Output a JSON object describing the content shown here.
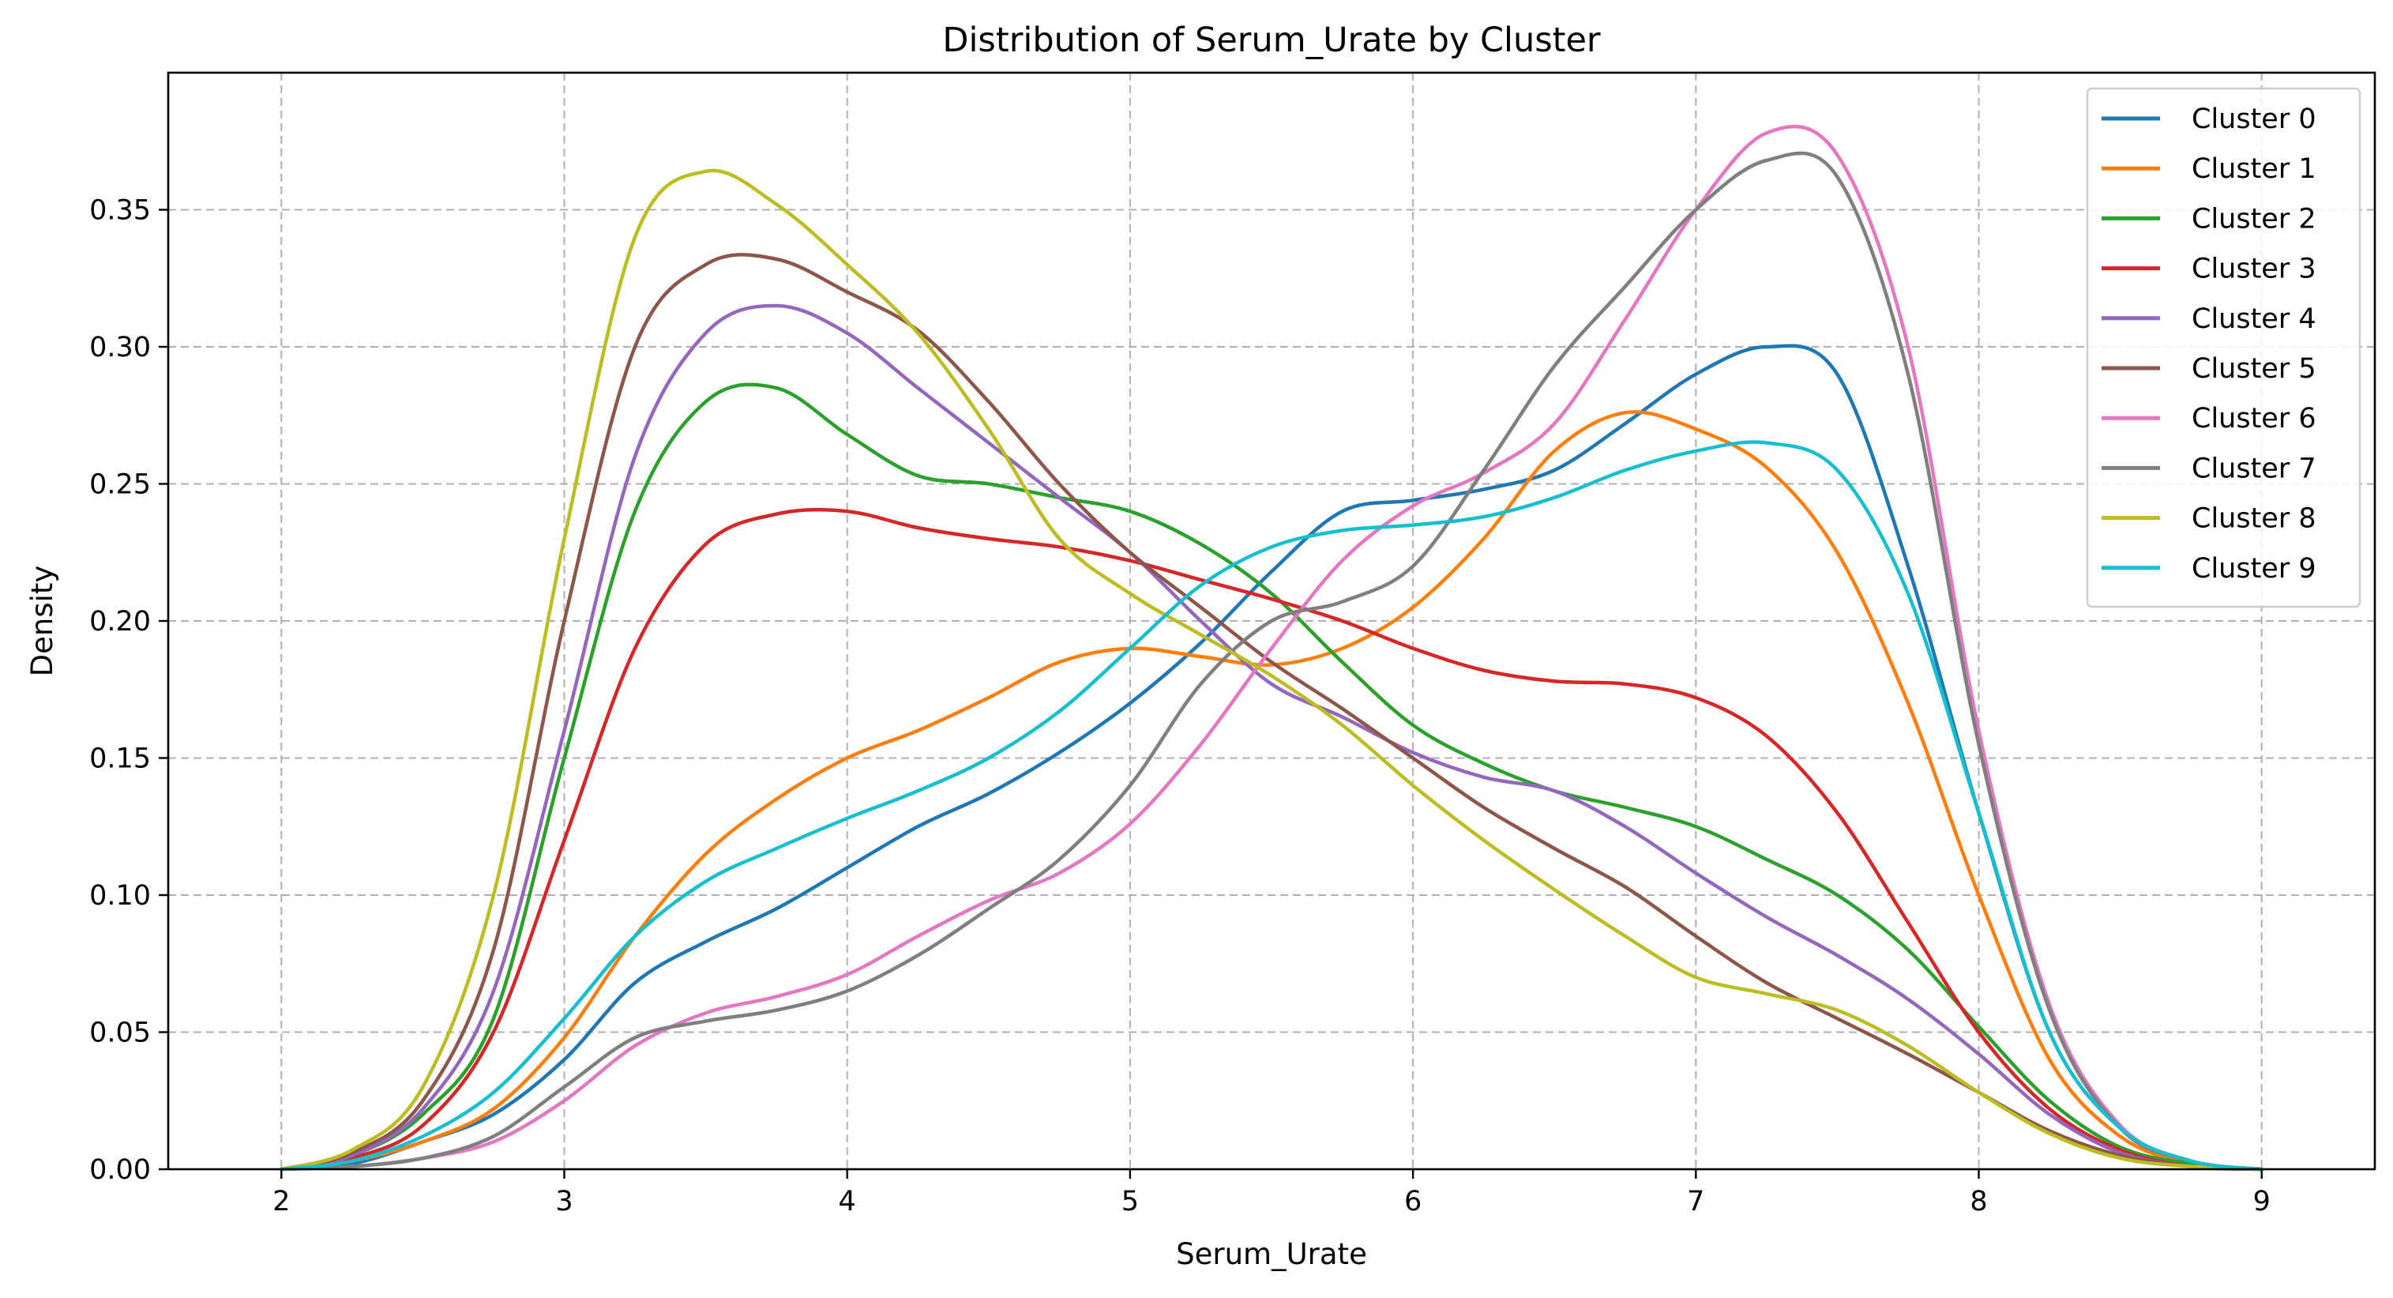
{
  "chart_data": {
    "type": "line",
    "title": "Distribution of Serum_Urate by Cluster",
    "xlabel": "Serum_Urate",
    "ylabel": "Density",
    "xlim": [
      1.6,
      9.4
    ],
    "ylim": [
      0.0,
      0.4
    ],
    "xticks": [
      2,
      3,
      4,
      5,
      6,
      7,
      8,
      9
    ],
    "yticks": [
      0.0,
      0.05,
      0.1,
      0.15,
      0.2,
      0.25,
      0.3,
      0.35
    ],
    "ytick_labels": [
      "0.00",
      "0.05",
      "0.10",
      "0.15",
      "0.20",
      "0.25",
      "0.30",
      "0.35"
    ],
    "grid": true,
    "legend_position": "top-right",
    "series": [
      {
        "name": "Cluster 0",
        "color": "#1f77b4",
        "x": [
          2.0,
          2.25,
          2.5,
          2.75,
          3.0,
          3.25,
          3.5,
          3.75,
          4.0,
          4.25,
          4.5,
          4.75,
          5.0,
          5.25,
          5.5,
          5.75,
          6.0,
          6.25,
          6.5,
          6.75,
          7.0,
          7.25,
          7.5,
          7.75,
          8.0,
          8.25,
          8.5,
          8.75,
          9.0
        ],
        "y": [
          0.0,
          0.002,
          0.01,
          0.02,
          0.04,
          0.068,
          0.083,
          0.095,
          0.11,
          0.125,
          0.137,
          0.152,
          0.17,
          0.192,
          0.218,
          0.24,
          0.244,
          0.248,
          0.255,
          0.272,
          0.29,
          0.3,
          0.29,
          0.22,
          0.13,
          0.05,
          0.015,
          0.003,
          0.0
        ]
      },
      {
        "name": "Cluster 1",
        "color": "#ff7f0e",
        "x": [
          2.0,
          2.25,
          2.5,
          2.75,
          3.0,
          3.25,
          3.5,
          3.75,
          4.0,
          4.25,
          4.5,
          4.75,
          5.0,
          5.25,
          5.5,
          5.75,
          6.0,
          6.25,
          6.5,
          6.75,
          7.0,
          7.25,
          7.5,
          7.75,
          8.0,
          8.25,
          8.5,
          8.75,
          9.0
        ],
        "y": [
          0.0,
          0.003,
          0.01,
          0.022,
          0.048,
          0.085,
          0.115,
          0.135,
          0.15,
          0.16,
          0.172,
          0.185,
          0.19,
          0.187,
          0.184,
          0.19,
          0.205,
          0.23,
          0.262,
          0.276,
          0.27,
          0.256,
          0.225,
          0.17,
          0.1,
          0.04,
          0.012,
          0.002,
          0.0
        ]
      },
      {
        "name": "Cluster 2",
        "color": "#2ca02c",
        "x": [
          2.0,
          2.25,
          2.5,
          2.75,
          3.0,
          3.25,
          3.5,
          3.75,
          4.0,
          4.25,
          4.5,
          4.75,
          5.0,
          5.25,
          5.5,
          5.75,
          6.0,
          6.25,
          6.5,
          6.75,
          7.0,
          7.25,
          7.5,
          7.75,
          8.0,
          8.25,
          8.5,
          8.75,
          9.0
        ],
        "y": [
          0.0,
          0.005,
          0.02,
          0.055,
          0.15,
          0.24,
          0.28,
          0.285,
          0.268,
          0.253,
          0.25,
          0.245,
          0.24,
          0.228,
          0.21,
          0.185,
          0.162,
          0.148,
          0.138,
          0.132,
          0.125,
          0.113,
          0.1,
          0.08,
          0.052,
          0.025,
          0.008,
          0.002,
          0.0
        ]
      },
      {
        "name": "Cluster 3",
        "color": "#d62728",
        "x": [
          2.0,
          2.25,
          2.5,
          2.75,
          3.0,
          3.25,
          3.5,
          3.75,
          4.0,
          4.25,
          4.5,
          4.75,
          5.0,
          5.25,
          5.5,
          5.75,
          6.0,
          6.25,
          6.5,
          6.75,
          7.0,
          7.25,
          7.5,
          7.75,
          8.0,
          8.25,
          8.5,
          8.75,
          9.0
        ],
        "y": [
          0.0,
          0.004,
          0.016,
          0.05,
          0.12,
          0.19,
          0.228,
          0.239,
          0.24,
          0.234,
          0.23,
          0.227,
          0.222,
          0.215,
          0.208,
          0.2,
          0.19,
          0.182,
          0.178,
          0.177,
          0.172,
          0.158,
          0.13,
          0.09,
          0.05,
          0.022,
          0.007,
          0.001,
          0.0
        ]
      },
      {
        "name": "Cluster 4",
        "color": "#9467bd",
        "x": [
          2.0,
          2.25,
          2.5,
          2.75,
          3.0,
          3.25,
          3.5,
          3.75,
          4.0,
          4.25,
          4.5,
          4.75,
          5.0,
          5.25,
          5.5,
          5.75,
          6.0,
          6.25,
          6.5,
          6.75,
          7.0,
          7.25,
          7.5,
          7.75,
          8.0,
          8.25,
          8.5,
          8.75,
          9.0
        ],
        "y": [
          0.0,
          0.005,
          0.022,
          0.065,
          0.16,
          0.26,
          0.305,
          0.315,
          0.305,
          0.285,
          0.265,
          0.245,
          0.225,
          0.2,
          0.177,
          0.165,
          0.152,
          0.143,
          0.138,
          0.125,
          0.108,
          0.092,
          0.078,
          0.062,
          0.042,
          0.02,
          0.006,
          0.001,
          0.0
        ]
      },
      {
        "name": "Cluster 5",
        "color": "#8c564b",
        "x": [
          2.0,
          2.25,
          2.5,
          2.75,
          3.0,
          3.25,
          3.5,
          3.75,
          4.0,
          4.25,
          4.5,
          4.75,
          5.0,
          5.25,
          5.5,
          5.75,
          6.0,
          6.25,
          6.5,
          6.75,
          7.0,
          7.25,
          7.5,
          7.75,
          8.0,
          8.25,
          8.5,
          8.75,
          9.0
        ],
        "y": [
          0.0,
          0.006,
          0.025,
          0.08,
          0.2,
          0.3,
          0.33,
          0.332,
          0.32,
          0.306,
          0.28,
          0.25,
          0.225,
          0.205,
          0.185,
          0.168,
          0.15,
          0.132,
          0.117,
          0.103,
          0.085,
          0.068,
          0.055,
          0.042,
          0.028,
          0.014,
          0.005,
          0.001,
          0.0
        ]
      },
      {
        "name": "Cluster 6",
        "color": "#e377c2",
        "x": [
          2.0,
          2.25,
          2.5,
          2.75,
          3.0,
          3.25,
          3.5,
          3.75,
          4.0,
          4.25,
          4.5,
          4.75,
          5.0,
          5.25,
          5.5,
          5.75,
          6.0,
          6.25,
          6.5,
          6.75,
          7.0,
          7.25,
          7.5,
          7.75,
          8.0,
          8.25,
          8.5,
          8.75,
          9.0
        ],
        "y": [
          0.0,
          0.001,
          0.004,
          0.01,
          0.025,
          0.045,
          0.057,
          0.063,
          0.071,
          0.085,
          0.098,
          0.108,
          0.126,
          0.155,
          0.19,
          0.222,
          0.242,
          0.254,
          0.272,
          0.31,
          0.35,
          0.378,
          0.37,
          0.3,
          0.16,
          0.06,
          0.016,
          0.003,
          0.0
        ]
      },
      {
        "name": "Cluster 7",
        "color": "#7f7f7f",
        "x": [
          2.0,
          2.25,
          2.5,
          2.75,
          3.0,
          3.25,
          3.5,
          3.75,
          4.0,
          4.25,
          4.5,
          4.75,
          5.0,
          5.25,
          5.5,
          5.75,
          6.0,
          6.25,
          6.5,
          6.75,
          7.0,
          7.25,
          7.5,
          7.75,
          8.0,
          8.25,
          8.5,
          8.75,
          9.0
        ],
        "y": [
          0.0,
          0.001,
          0.004,
          0.012,
          0.03,
          0.048,
          0.054,
          0.058,
          0.065,
          0.078,
          0.095,
          0.113,
          0.14,
          0.177,
          0.2,
          0.207,
          0.22,
          0.255,
          0.293,
          0.322,
          0.35,
          0.368,
          0.362,
          0.29,
          0.155,
          0.058,
          0.015,
          0.003,
          0.0
        ]
      },
      {
        "name": "Cluster 8",
        "color": "#bcbd22",
        "x": [
          2.0,
          2.25,
          2.5,
          2.75,
          3.0,
          3.25,
          3.5,
          3.75,
          4.0,
          4.25,
          4.5,
          4.75,
          5.0,
          5.25,
          5.5,
          5.75,
          6.0,
          6.25,
          6.5,
          6.75,
          7.0,
          7.25,
          7.5,
          7.75,
          8.0,
          8.25,
          8.5,
          8.75,
          9.0
        ],
        "y": [
          0.0,
          0.007,
          0.03,
          0.1,
          0.23,
          0.34,
          0.364,
          0.352,
          0.33,
          0.305,
          0.27,
          0.23,
          0.21,
          0.195,
          0.18,
          0.162,
          0.14,
          0.12,
          0.102,
          0.085,
          0.07,
          0.064,
          0.058,
          0.045,
          0.028,
          0.013,
          0.004,
          0.001,
          0.0
        ]
      },
      {
        "name": "Cluster 9",
        "color": "#17becf",
        "x": [
          2.0,
          2.25,
          2.5,
          2.75,
          3.0,
          3.25,
          3.5,
          3.75,
          4.0,
          4.25,
          4.5,
          4.75,
          5.0,
          5.25,
          5.5,
          5.75,
          6.0,
          6.25,
          6.5,
          6.75,
          7.0,
          7.25,
          7.5,
          7.75,
          8.0,
          8.25,
          8.5,
          8.75,
          9.0
        ],
        "y": [
          0.0,
          0.003,
          0.012,
          0.028,
          0.055,
          0.085,
          0.105,
          0.117,
          0.128,
          0.138,
          0.15,
          0.167,
          0.19,
          0.213,
          0.227,
          0.233,
          0.235,
          0.238,
          0.245,
          0.255,
          0.262,
          0.265,
          0.255,
          0.21,
          0.13,
          0.05,
          0.015,
          0.003,
          0.0
        ]
      }
    ]
  }
}
